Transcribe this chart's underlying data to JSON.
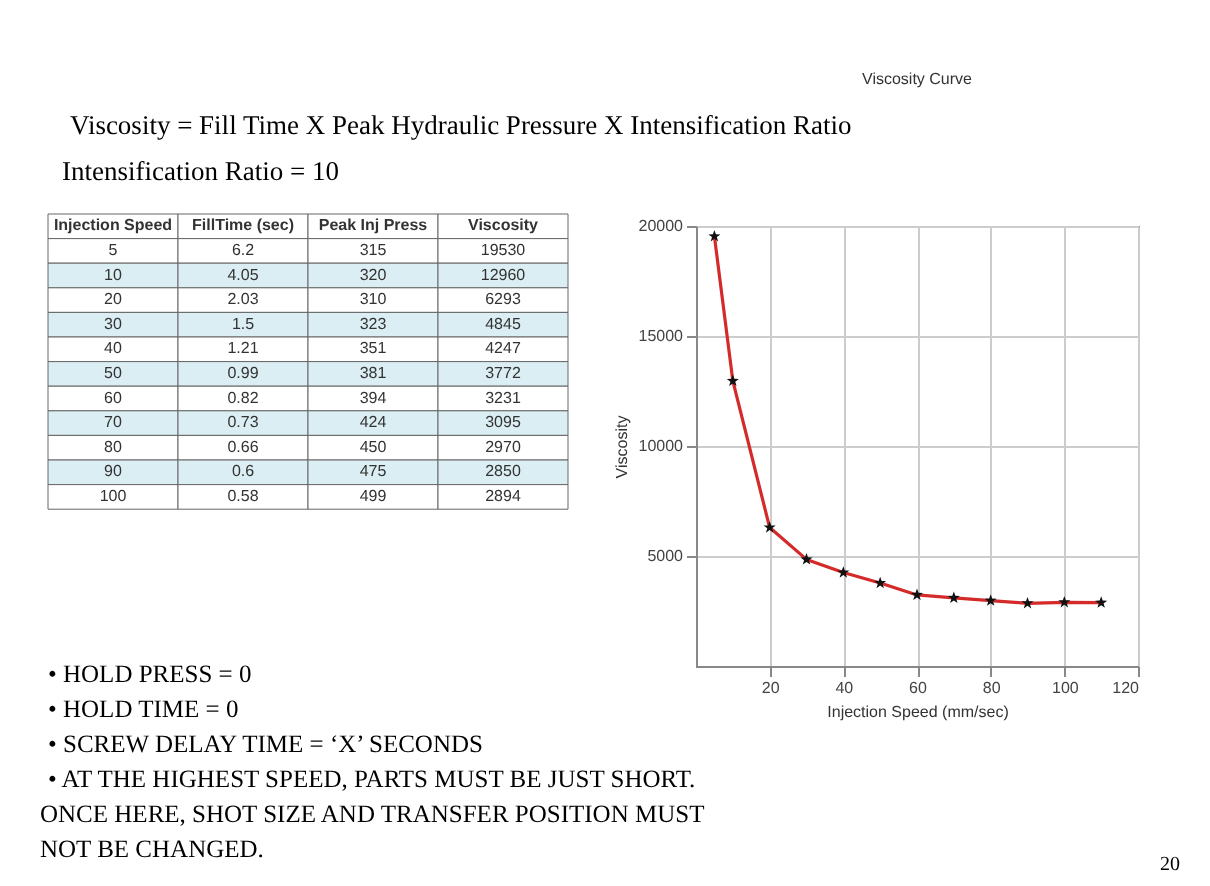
{
  "chart_data": [
    {
      "type": "heatmap",
      "title": "Viscosity = Fill Time  X  Peak Hydraulic Pressure  X  Intensification Ratio",
      "subtitle": "Intensification Ratio = 10",
      "ylabel": "Injection Speed",
      "categories": [
        "FillTime (sec)",
        "Peak Inj Press",
        "Viscosity"
      ],
      "y_categories": [
        "5",
        "10",
        "20",
        "30",
        "40",
        "50",
        "60",
        "70",
        "80",
        "90",
        "100"
      ],
      "data_labels": true,
      "cells": [
        [
          6.2,
          315,
          19530
        ],
        [
          4.05,
          320,
          12960
        ],
        [
          2.03,
          310,
          6293
        ],
        [
          1.5,
          323,
          4845
        ],
        [
          1.21,
          351,
          4247
        ],
        [
          0.99,
          381,
          3772
        ],
        [
          0.82,
          394,
          3231
        ],
        [
          0.73,
          424,
          3095
        ],
        [
          0.66,
          450,
          2970
        ],
        [
          0.6,
          475,
          2850
        ],
        [
          0.58,
          499,
          2894
        ]
      ],
      "annotations": [
        "• HOLD PRESS = 0",
        "• HOLD TIME = 0",
        "• SCREW DELAY TIME = ‘X’ SECONDS",
        "• AT THE HIGHEST SPEED, PARTS MUST BE JUST SHORT. ONCE HERE, SHOT SIZE AND TRANSFER POSITION MUST NOT BE CHANGED.",
        "20"
      ]
    },
    {
      "type": "line",
      "title": "Viscosity Curve",
      "xlabel": "Injection Speed (mm/sec)",
      "ylabel": "Viscosity",
      "x": [
        5,
        10,
        20,
        30,
        40,
        50,
        60,
        70,
        80,
        90,
        100,
        110
      ],
      "series": [
        {
          "color": "#d42a2a",
          "values": [
            19530,
            12960,
            6293,
            4845,
            4247,
            3772,
            3231,
            3095,
            2970,
            2850,
            2894,
            2880
          ]
        }
      ],
      "marker": "star",
      "line_style": "solid",
      "grid": true,
      "xlim": [
        0,
        120
      ],
      "xticks": [
        20,
        40,
        60,
        80,
        100,
        120
      ],
      "ylim": [
        0,
        20000
      ],
      "yticks": [
        5000,
        10000,
        15000,
        20000
      ]
    }
  ]
}
